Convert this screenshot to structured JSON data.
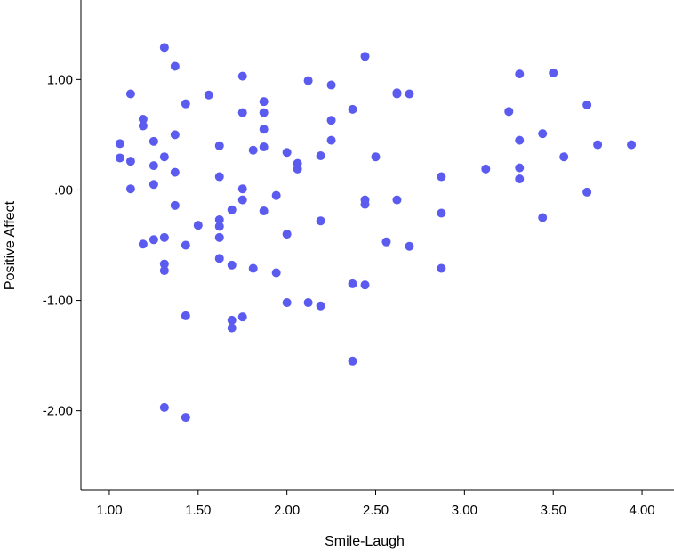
{
  "chart_data": {
    "type": "scatter",
    "title": "",
    "xlabel": "Smile-Laugh",
    "ylabel": "Positive Affect",
    "xlim": [
      0.84,
      4.18
    ],
    "ylim": [
      -2.72,
      1.72
    ],
    "xticks": [
      1.0,
      1.5,
      2.0,
      2.5,
      3.0,
      3.5,
      4.0
    ],
    "xtick_labels": [
      "1.00",
      "1.50",
      "2.00",
      "2.50",
      "3.00",
      "3.50",
      "4.00"
    ],
    "yticks": [
      1.0,
      0.0,
      -1.0,
      -2.0
    ],
    "ytick_labels": [
      "1.00",
      ".00",
      "-1.00",
      "-2.00"
    ],
    "grid": false,
    "legend": "none",
    "marker_color": "#5b5bef",
    "series": [
      {
        "points": [
          [
            1.06,
            0.42
          ],
          [
            1.06,
            0.29
          ],
          [
            1.12,
            0.87
          ],
          [
            1.12,
            0.26
          ],
          [
            1.12,
            0.01
          ],
          [
            1.19,
            0.64
          ],
          [
            1.19,
            0.58
          ],
          [
            1.19,
            -0.49
          ],
          [
            1.25,
            0.44
          ],
          [
            1.25,
            0.22
          ],
          [
            1.25,
            0.05
          ],
          [
            1.25,
            -0.45
          ],
          [
            1.31,
            1.29
          ],
          [
            1.31,
            0.3
          ],
          [
            1.31,
            -0.43
          ],
          [
            1.31,
            -0.67
          ],
          [
            1.31,
            -0.73
          ],
          [
            1.31,
            -1.97
          ],
          [
            1.37,
            1.12
          ],
          [
            1.37,
            0.5
          ],
          [
            1.37,
            0.16
          ],
          [
            1.37,
            -0.14
          ],
          [
            1.43,
            0.78
          ],
          [
            1.43,
            -0.5
          ],
          [
            1.43,
            -1.14
          ],
          [
            1.43,
            -2.06
          ],
          [
            1.5,
            -0.32
          ],
          [
            1.56,
            0.86
          ],
          [
            1.62,
            0.4
          ],
          [
            1.62,
            0.12
          ],
          [
            1.62,
            -0.27
          ],
          [
            1.62,
            -0.33
          ],
          [
            1.62,
            -0.43
          ],
          [
            1.62,
            -0.62
          ],
          [
            1.69,
            -0.18
          ],
          [
            1.69,
            -0.68
          ],
          [
            1.69,
            -1.18
          ],
          [
            1.69,
            -1.25
          ],
          [
            1.75,
            1.03
          ],
          [
            1.75,
            0.7
          ],
          [
            1.75,
            0.01
          ],
          [
            1.75,
            -0.09
          ],
          [
            1.75,
            -1.15
          ],
          [
            1.81,
            0.36
          ],
          [
            1.81,
            -0.71
          ],
          [
            1.87,
            0.8
          ],
          [
            1.87,
            0.7
          ],
          [
            1.87,
            0.55
          ],
          [
            1.87,
            0.39
          ],
          [
            1.87,
            -0.19
          ],
          [
            1.94,
            -0.05
          ],
          [
            1.94,
            -0.75
          ],
          [
            2.0,
            0.34
          ],
          [
            2.0,
            -0.4
          ],
          [
            2.0,
            -1.02
          ],
          [
            2.06,
            0.24
          ],
          [
            2.06,
            0.19
          ],
          [
            2.12,
            0.99
          ],
          [
            2.12,
            -1.02
          ],
          [
            2.19,
            0.31
          ],
          [
            2.19,
            -0.28
          ],
          [
            2.19,
            -1.05
          ],
          [
            2.25,
            0.95
          ],
          [
            2.25,
            0.63
          ],
          [
            2.25,
            0.45
          ],
          [
            2.37,
            0.73
          ],
          [
            2.37,
            -0.85
          ],
          [
            2.37,
            -1.55
          ],
          [
            2.44,
            1.21
          ],
          [
            2.44,
            -0.09
          ],
          [
            2.44,
            -0.13
          ],
          [
            2.44,
            -0.86
          ],
          [
            2.5,
            0.3
          ],
          [
            2.56,
            -0.47
          ],
          [
            2.62,
            0.88
          ],
          [
            2.62,
            0.87
          ],
          [
            2.62,
            -0.09
          ],
          [
            2.69,
            0.87
          ],
          [
            2.69,
            -0.51
          ],
          [
            2.87,
            0.12
          ],
          [
            2.87,
            -0.21
          ],
          [
            2.87,
            -0.71
          ],
          [
            3.12,
            0.19
          ],
          [
            3.25,
            0.71
          ],
          [
            3.31,
            1.05
          ],
          [
            3.31,
            0.45
          ],
          [
            3.31,
            0.2
          ],
          [
            3.31,
            0.1
          ],
          [
            3.44,
            0.51
          ],
          [
            3.44,
            -0.25
          ],
          [
            3.5,
            1.06
          ],
          [
            3.56,
            0.3
          ],
          [
            3.69,
            0.77
          ],
          [
            3.69,
            -0.02
          ],
          [
            3.75,
            0.41
          ],
          [
            3.94,
            0.41
          ]
        ]
      }
    ]
  }
}
